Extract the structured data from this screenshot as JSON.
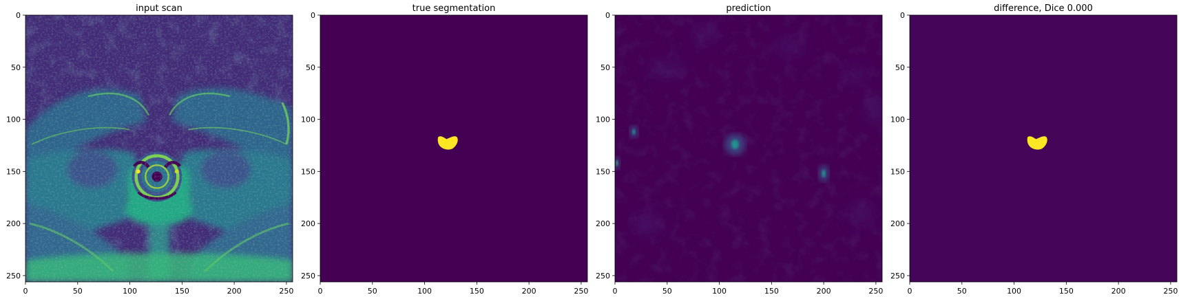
{
  "figure": {
    "background": "#ffffff",
    "colormap": "viridis"
  },
  "chart_data": [
    {
      "type": "heatmap",
      "title": "input scan",
      "xlabel": "",
      "ylabel": "",
      "xlim": [
        0,
        256
      ],
      "ylim": [
        256,
        0
      ],
      "xticks": [
        0,
        50,
        100,
        150,
        200,
        250
      ],
      "yticks": [
        0,
        50,
        100,
        150,
        200,
        250
      ],
      "content": "mri",
      "colors": {
        "low": "#440154",
        "mid": "#21918c",
        "high": "#5ec962"
      }
    },
    {
      "type": "heatmap",
      "title": "true segmentation",
      "xlabel": "",
      "ylabel": "",
      "xlim": [
        0,
        256
      ],
      "ylim": [
        256,
        0
      ],
      "xticks": [
        0,
        50,
        100,
        150,
        200,
        250
      ],
      "yticks": [
        0,
        50,
        100,
        150,
        200,
        250
      ],
      "content": "mask",
      "mask_region": {
        "x_range": [
          113,
          132
        ],
        "y_range": [
          116,
          128
        ]
      },
      "colors": {
        "background": "#440154",
        "foreground": "#fde725"
      }
    },
    {
      "type": "heatmap",
      "title": "prediction",
      "xlabel": "",
      "ylabel": "",
      "xlim": [
        0,
        256
      ],
      "ylim": [
        256,
        0
      ],
      "xticks": [
        0,
        50,
        100,
        150,
        200,
        250
      ],
      "yticks": [
        0,
        50,
        100,
        150,
        200,
        250
      ],
      "content": "prediction",
      "hotspots": [
        {
          "x": 2,
          "y": 142,
          "rx": 3,
          "ry": 6
        },
        {
          "x": 18,
          "y": 112,
          "rx": 4,
          "ry": 6
        },
        {
          "x": 115,
          "y": 124,
          "rx": 10,
          "ry": 10
        },
        {
          "x": 200,
          "y": 152,
          "rx": 5,
          "ry": 8
        }
      ],
      "colors": {
        "background": "#440154",
        "highlight": "#21918c"
      }
    },
    {
      "type": "heatmap",
      "title": "difference, Dice 0.000",
      "xlabel": "",
      "ylabel": "",
      "xlim": [
        0,
        256
      ],
      "ylim": [
        256,
        0
      ],
      "xticks": [
        0,
        50,
        100,
        150,
        200,
        250
      ],
      "yticks": [
        0,
        50,
        100,
        150,
        200,
        250
      ],
      "content": "difference",
      "mask_region": {
        "x_range": [
          113,
          132
        ],
        "y_range": [
          116,
          128
        ]
      },
      "colors": {
        "background": "#440154",
        "foreground": "#fde725"
      }
    }
  ]
}
